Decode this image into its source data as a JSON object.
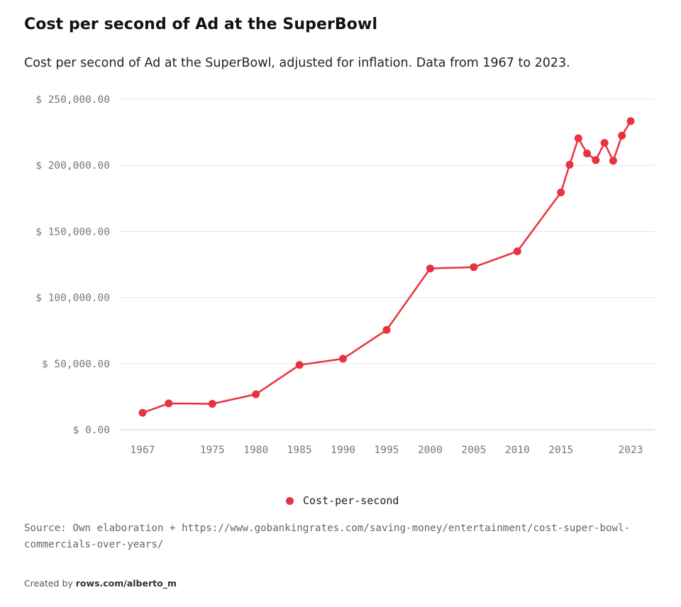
{
  "colors": {
    "series": "#e8323f",
    "grid": "#e3e3e3",
    "axis_text": "#777777"
  },
  "legend": {
    "label": "Cost-per-second"
  },
  "source_text": "Source: Own elaboration + https://www.gobankingrates.com/saving-money/entertainment/cost-super-bowl-commercials-over-years/",
  "credit": {
    "prefix": "Created by",
    "link": "rows.com/alberto_m"
  },
  "chart_data": {
    "type": "line",
    "title": "Cost per second of Ad at the SuperBowl",
    "subtitle": "Cost per second of Ad at the SuperBowl, adjusted for inflation. Data from 1967 to 2023.",
    "xlabel": "",
    "ylabel": "",
    "xlim": [
      1967,
      2023
    ],
    "ylim": [
      0,
      250000
    ],
    "grid": true,
    "legend_position": "bottom",
    "x_ticks": [
      {
        "value": 1967,
        "label": "1967"
      },
      {
        "value": 1975,
        "label": "1975"
      },
      {
        "value": 1980,
        "label": "1980"
      },
      {
        "value": 1985,
        "label": "1985"
      },
      {
        "value": 1990,
        "label": "1990"
      },
      {
        "value": 1995,
        "label": "1995"
      },
      {
        "value": 2000,
        "label": "2000"
      },
      {
        "value": 2005,
        "label": "2005"
      },
      {
        "value": 2010,
        "label": "2010"
      },
      {
        "value": 2015,
        "label": "2015"
      },
      {
        "value": 2023,
        "label": "2023"
      }
    ],
    "y_ticks": [
      {
        "value": 0,
        "label": "$ 0.00"
      },
      {
        "value": 50000,
        "label": "$ 50,000.00"
      },
      {
        "value": 100000,
        "label": "$ 100,000.00"
      },
      {
        "value": 150000,
        "label": "$ 150,000.00"
      },
      {
        "value": 200000,
        "label": "$ 200,000.00"
      },
      {
        "value": 250000,
        "label": "$ 250,000.00"
      }
    ],
    "series": [
      {
        "name": "Cost-per-second",
        "x": [
          1967,
          1970,
          1975,
          1980,
          1985,
          1990,
          1995,
          2000,
          2005,
          2010,
          2015,
          2016,
          2017,
          2018,
          2019,
          2020,
          2021,
          2022,
          2023
        ],
        "values": [
          12800,
          19900,
          19600,
          26800,
          49000,
          53700,
          75500,
          122000,
          123000,
          135000,
          179500,
          200500,
          220500,
          209000,
          204000,
          217000,
          203500,
          222500,
          233500
        ]
      }
    ]
  }
}
